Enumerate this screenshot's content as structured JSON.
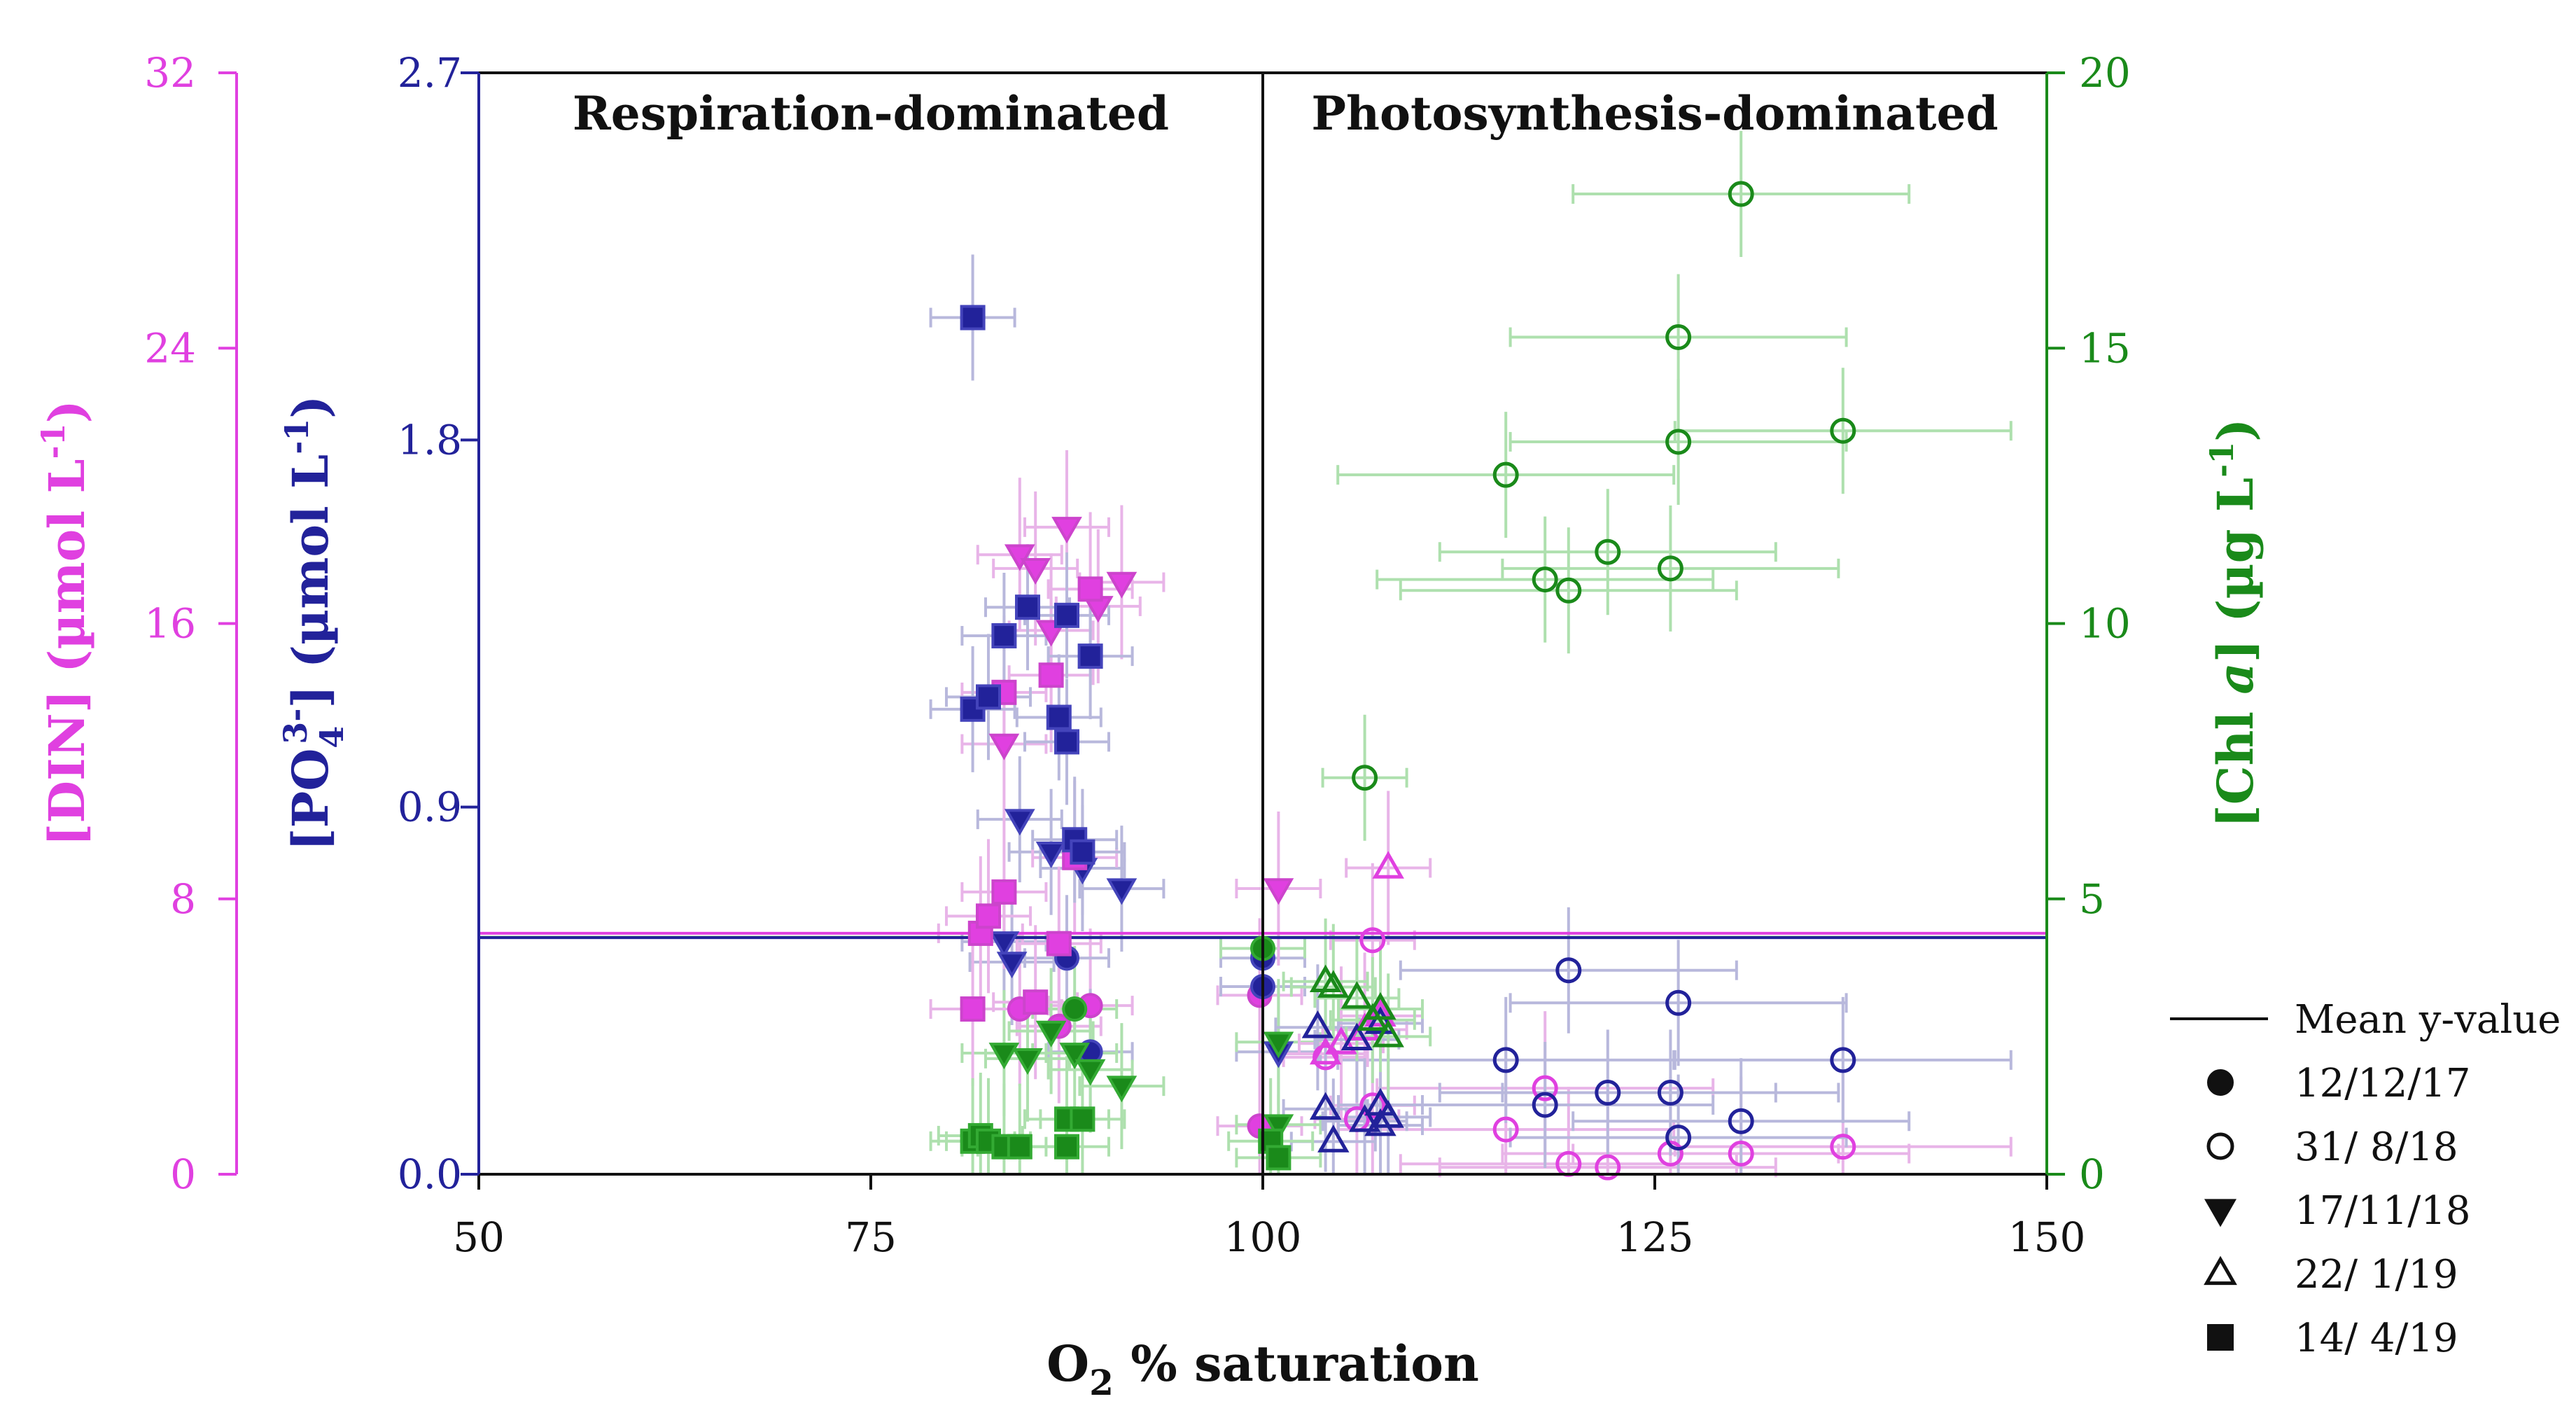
{
  "chart_data": {
    "type": "scatter",
    "regions": [
      "Respiration-dominated",
      "Photosynthesis-dominated"
    ],
    "x_axis": {
      "label_main": "O",
      "label_sub": "2",
      "label_rest": " % saturation",
      "range": [
        50,
        150
      ],
      "ticks": [
        "50",
        "75",
        "100",
        "125",
        "150"
      ]
    },
    "axes": {
      "din": {
        "label": "[DIN] (µmol L",
        "label_sup": "-1",
        "label_end": ")",
        "range": [
          0,
          32
        ],
        "ticks": [
          "0",
          "8",
          "16",
          "24",
          "32"
        ],
        "color": "#e040e0"
      },
      "po4": {
        "label": "[PO",
        "label_sub": "4",
        "label_sup": "3-",
        "label_end": "] (µmol L",
        "label_sup2": "-1",
        "label_end2": ")",
        "range": [
          0,
          2.7
        ],
        "ticks": [
          "0.0",
          "0.9",
          "1.8",
          "2.7"
        ],
        "color": "#22229a"
      },
      "chl": {
        "label": "[Chl ",
        "label_italic": "a",
        "label_end": "] (µg L",
        "label_sup": "-1",
        "label_end2": ")",
        "range": [
          0,
          20
        ],
        "ticks": [
          "0",
          "5",
          "10",
          "15",
          "20"
        ],
        "color": "#1a8a1a"
      }
    },
    "mean_lines": {
      "din": 7.0,
      "po4": 0.58,
      "chl": 4.3
    },
    "legend": {
      "mean_label": "Mean y-value",
      "items": [
        {
          "marker": "circle-filled",
          "label": "12/12/17"
        },
        {
          "marker": "circle-open",
          "label": "31/  8/18"
        },
        {
          "marker": "triangle-down-filled",
          "label": "17/11/18"
        },
        {
          "marker": "triangle-up-open",
          "label": "22/  1/19"
        },
        {
          "marker": "square-filled",
          "label": "14/  4/19"
        }
      ]
    },
    "series": [
      {
        "name": "31/ 8/18",
        "marker": "circle-open",
        "din": [
          [
            107,
            6.8
          ],
          [
            107,
            2.0
          ],
          [
            104,
            3.4
          ],
          [
            106,
            1.6
          ],
          [
            115.5,
            1.3
          ],
          [
            118,
            2.5
          ],
          [
            119.5,
            0.3
          ],
          [
            122,
            0.2
          ],
          [
            126,
            0.6
          ],
          [
            130.5,
            0.6
          ],
          [
            137,
            0.8
          ]
        ],
        "po4": [
          [
            119.5,
            0.5
          ],
          [
            126.5,
            0.42
          ],
          [
            115.5,
            0.28
          ],
          [
            118,
            0.17
          ],
          [
            122,
            0.2
          ],
          [
            126,
            0.2
          ],
          [
            130.5,
            0.13
          ],
          [
            126.5,
            0.09
          ],
          [
            137,
            0.28
          ]
        ],
        "chl": [
          [
            130.5,
            17.8
          ],
          [
            126.5,
            15.2
          ],
          [
            126.5,
            13.3
          ],
          [
            137,
            13.5
          ],
          [
            115.5,
            12.7
          ],
          [
            122,
            11.3
          ],
          [
            126,
            11.0
          ],
          [
            118,
            10.8
          ],
          [
            119.5,
            10.6
          ],
          [
            106.5,
            7.2
          ]
        ]
      },
      {
        "name": "12/12/17",
        "marker": "circle-filled",
        "din": [
          [
            84.5,
            4.8
          ],
          [
            87,
            4.3
          ],
          [
            89,
            4.9
          ],
          [
            99.8,
            1.4
          ],
          [
            99.8,
            5.2
          ]
        ],
        "po4": [
          [
            87.5,
            0.53
          ],
          [
            89,
            0.3
          ],
          [
            100,
            0.53
          ],
          [
            100,
            0.46
          ]
        ],
        "chl": [
          [
            88,
            3.0
          ],
          [
            100,
            4.1
          ]
        ]
      },
      {
        "name": "17/11/18",
        "marker": "triangle-down-filled",
        "din": [
          [
            84.5,
            18.0
          ],
          [
            85.5,
            17.6
          ],
          [
            86.5,
            15.8
          ],
          [
            87.5,
            18.8
          ],
          [
            89.5,
            16.5
          ],
          [
            91,
            17.2
          ],
          [
            101,
            8.3
          ],
          [
            83.5,
            12.5
          ]
        ],
        "po4": [
          [
            84.5,
            0.87
          ],
          [
            86.5,
            0.79
          ],
          [
            88.5,
            0.75
          ],
          [
            91,
            0.7
          ],
          [
            83.5,
            0.57
          ],
          [
            84,
            0.52
          ],
          [
            101,
            0.3
          ]
        ],
        "chl": [
          [
            83.5,
            2.2
          ],
          [
            85,
            2.1
          ],
          [
            86.5,
            2.6
          ],
          [
            88,
            2.2
          ],
          [
            89,
            1.9
          ],
          [
            91,
            1.6
          ],
          [
            101,
            2.4
          ],
          [
            101,
            0.9
          ]
        ]
      },
      {
        "name": "22/ 1/19",
        "marker": "triangle-up-open",
        "din": [
          [
            108,
            8.9
          ],
          [
            104,
            3.5
          ],
          [
            105,
            3.8
          ],
          [
            106.5,
            4.2
          ],
          [
            107.5,
            4.6
          ]
        ],
        "po4": [
          [
            103.5,
            0.36
          ],
          [
            106,
            0.33
          ],
          [
            107.5,
            0.37
          ],
          [
            104,
            0.16
          ],
          [
            107.5,
            0.17
          ],
          [
            104.5,
            0.08
          ],
          [
            106.5,
            0.13
          ],
          [
            107.5,
            0.12
          ],
          [
            108,
            0.14
          ]
        ],
        "chl": [
          [
            104.5,
            3.4
          ],
          [
            106,
            3.2
          ],
          [
            107.5,
            3.0
          ],
          [
            108,
            2.5
          ],
          [
            104,
            3.5
          ],
          [
            107,
            2.8
          ]
        ]
      },
      {
        "name": "14/ 4/19",
        "marker": "square-filled",
        "din": [
          [
            82,
            7.0
          ],
          [
            82.5,
            7.5
          ],
          [
            83.5,
            8.2
          ],
          [
            87,
            6.7
          ],
          [
            86.5,
            14.5
          ],
          [
            88,
            9.2
          ],
          [
            89,
            17.0
          ],
          [
            81.5,
            4.8
          ],
          [
            83.5,
            14.0
          ],
          [
            85.5,
            5.0
          ]
        ],
        "po4": [
          [
            81.5,
            2.1
          ],
          [
            83.5,
            1.32
          ],
          [
            85,
            1.39
          ],
          [
            87.5,
            1.37
          ],
          [
            89,
            1.27
          ],
          [
            81.5,
            1.14
          ],
          [
            82.5,
            1.17
          ],
          [
            87,
            1.12
          ],
          [
            87.5,
            1.06
          ],
          [
            88,
            0.82
          ],
          [
            88.5,
            0.79
          ]
        ],
        "chl": [
          [
            81.5,
            0.6
          ],
          [
            82,
            0.7
          ],
          [
            82.5,
            0.6
          ],
          [
            83.5,
            0.5
          ],
          [
            84.5,
            0.5
          ],
          [
            87.5,
            1.0
          ],
          [
            87.5,
            0.5
          ],
          [
            88.5,
            1.0
          ],
          [
            100.5,
            0.6
          ],
          [
            101,
            0.3
          ]
        ]
      }
    ]
  }
}
